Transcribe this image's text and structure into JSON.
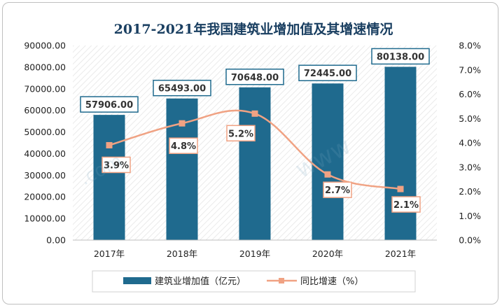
{
  "chart_data": {
    "type": "bar+line",
    "title": "2017-2021年我国建筑业增加值及其增速情况",
    "categories": [
      "2017年",
      "2018年",
      "2019年",
      "2020年",
      "2021年"
    ],
    "series": [
      {
        "name": "建筑业增加值（亿元）",
        "type": "bar",
        "axis": "left",
        "values": [
          57906.0,
          65493.0,
          70648.0,
          72445.0,
          80138.0
        ],
        "labels": [
          "57906.00",
          "65493.00",
          "70648.00",
          "72445.00",
          "80138.00"
        ],
        "color": "#1f6a8e"
      },
      {
        "name": "同比增速（%）",
        "type": "line",
        "axis": "right",
        "values": [
          3.9,
          4.8,
          5.2,
          2.7,
          2.1
        ],
        "labels": [
          "3.9%",
          "4.8%",
          "5.2%",
          "2.7%",
          "2.1%"
        ],
        "color": "#f0a283"
      }
    ],
    "y_left": {
      "min": 0,
      "max": 90000,
      "ticks": [
        "0.00",
        "10000.00",
        "20000.00",
        "30000.00",
        "40000.00",
        "50000.00",
        "60000.00",
        "70000.00",
        "80000.00",
        "90000.00"
      ]
    },
    "y_right": {
      "min": 0,
      "max": 8,
      "ticks": [
        "0.0%",
        "1.0%",
        "2.0%",
        "3.0%",
        "4.0%",
        "5.0%",
        "6.0%",
        "7.0%",
        "8.0%"
      ]
    },
    "legend_position": "bottom",
    "grid": false
  }
}
